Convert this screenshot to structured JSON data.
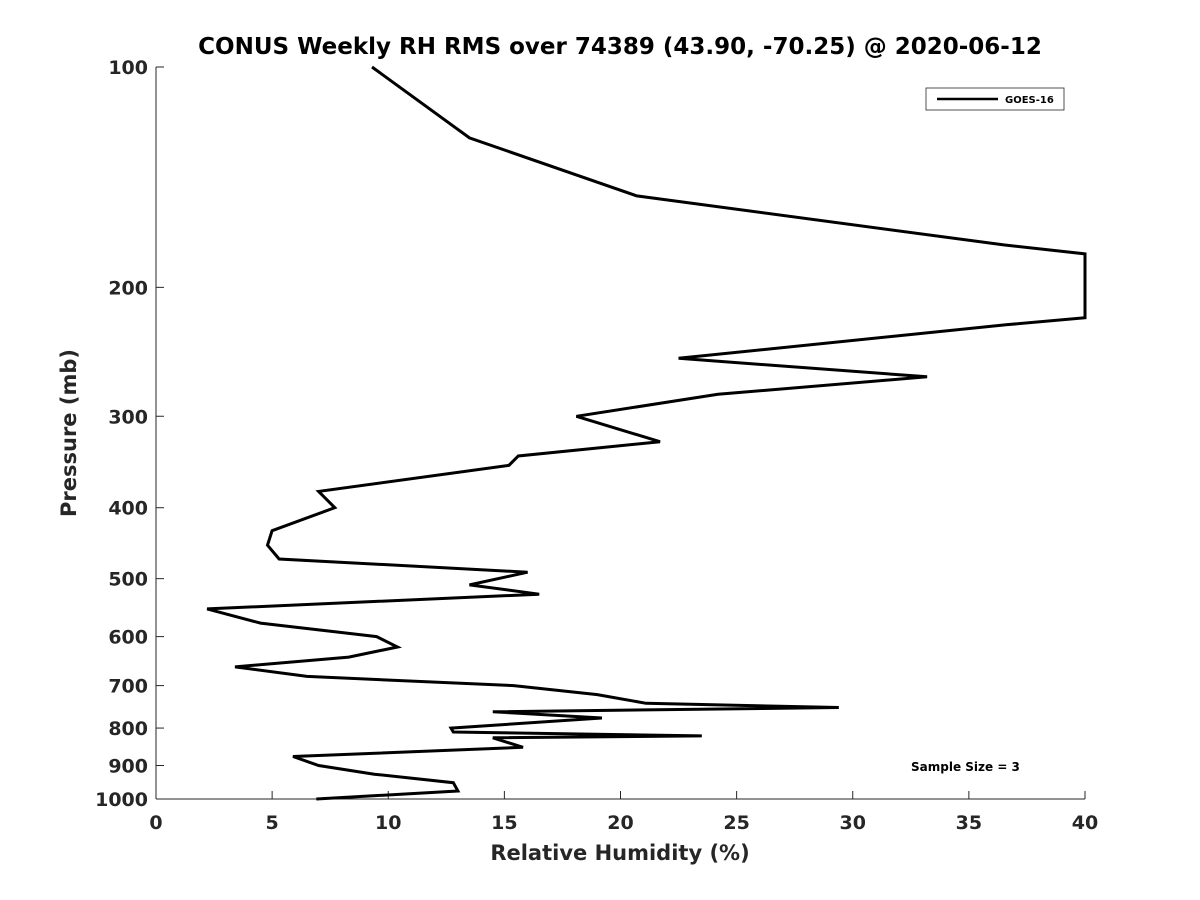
{
  "chart_data": {
    "type": "line",
    "title": "CONUS Weekly RH RMS over 74389 (43.90, -70.25) @ 2020-06-12",
    "xlabel": "Relative Humidity (%)",
    "ylabel": "Pressure (mb)",
    "xlim": [
      0,
      40
    ],
    "ylim": [
      100,
      1000
    ],
    "y_scale": "log",
    "y_reversed": true,
    "x_ticks": [
      "0",
      "5",
      "10",
      "15",
      "20",
      "25",
      "30",
      "35",
      "40"
    ],
    "y_ticks": [
      "100",
      "200",
      "300",
      "400",
      "500",
      "600",
      "700",
      "800",
      "900",
      "1000"
    ],
    "grid": false,
    "legend_position": "top-right",
    "annotation": "Sample Size = 3",
    "series": [
      {
        "name": "GOES-16",
        "color": "#000000",
        "points": [
          [
            9.3,
            100
          ],
          [
            13.5,
            125
          ],
          [
            20.7,
            150
          ],
          [
            36.5,
            175
          ],
          [
            40,
            180
          ],
          [
            40,
            220
          ],
          [
            36.6,
            225
          ],
          [
            22.5,
            250
          ],
          [
            33.2,
            265
          ],
          [
            24.2,
            280
          ],
          [
            18.1,
            300
          ],
          [
            21.7,
            325
          ],
          [
            15.6,
            340
          ],
          [
            15.2,
            350
          ],
          [
            7.0,
            380
          ],
          [
            7.7,
            400
          ],
          [
            5.0,
            430
          ],
          [
            4.8,
            450
          ],
          [
            5.3,
            470
          ],
          [
            16.0,
            490
          ],
          [
            13.5,
            510
          ],
          [
            16.5,
            525
          ],
          [
            2.2,
            550
          ],
          [
            4.5,
            575
          ],
          [
            9.5,
            600
          ],
          [
            10.4,
            620
          ],
          [
            8.3,
            640
          ],
          [
            3.4,
            660
          ],
          [
            6.5,
            680
          ],
          [
            15.4,
            700
          ],
          [
            19.0,
            720
          ],
          [
            21.1,
            740
          ],
          [
            29.4,
            750
          ],
          [
            14.5,
            760
          ],
          [
            19.2,
            775
          ],
          [
            12.7,
            800
          ],
          [
            12.8,
            810
          ],
          [
            23.5,
            820
          ],
          [
            14.5,
            825
          ],
          [
            15.8,
            850
          ],
          [
            5.9,
            875
          ],
          [
            7.0,
            900
          ],
          [
            9.4,
            925
          ],
          [
            12.8,
            950
          ],
          [
            13.0,
            975
          ],
          [
            6.9,
            1000
          ]
        ]
      }
    ]
  }
}
